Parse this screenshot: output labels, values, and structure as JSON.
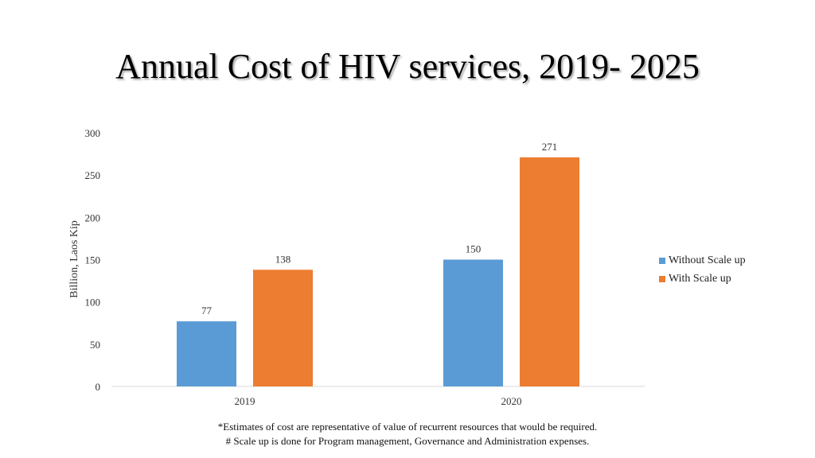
{
  "chart_data": {
    "type": "bar",
    "title": "Annual Cost of HIV services, 2019- 2025",
    "ylabel": "Billion, Laos Kip",
    "xlabel": "",
    "categories": [
      "2019",
      "2020"
    ],
    "series": [
      {
        "name": "Without Scale up",
        "values": [
          77,
          150
        ],
        "color": "#5B9BD5"
      },
      {
        "name": "With Scale up",
        "values": [
          138,
          271
        ],
        "color": "#ED7D31"
      }
    ],
    "ylim": [
      0,
      300
    ],
    "yticks": [
      0,
      50,
      100,
      150,
      200,
      250,
      300
    ],
    "legend_position": "right",
    "grid": false
  },
  "footnotes": {
    "line1": "*Estimates of cost are representative of value of recurrent resources that would be required.",
    "line2": "# Scale up is done for Program management, Governance and Administration expenses."
  }
}
